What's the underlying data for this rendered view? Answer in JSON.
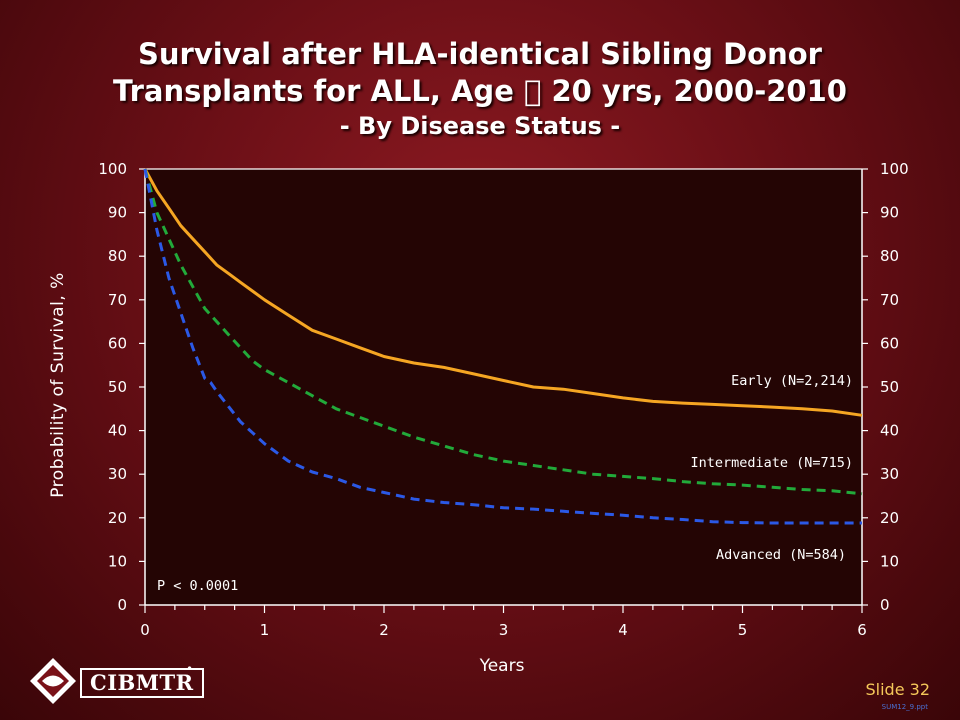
{
  "title": {
    "line1": "Survival after HLA-identical Sibling Donor",
    "line2": "Transplants for ALL, Age \u0000 20 yrs, 2000-2010",
    "line3": "- By Disease Status -"
  },
  "footer": {
    "logo_text": "CIBMTR",
    "slide_label": "Slide 32",
    "slide_code": "SUM12_9.ppt"
  },
  "chart_data": {
    "type": "line",
    "title": "",
    "xlabel": "Years",
    "ylabel": "Probability of Survival, %",
    "xlim": [
      0,
      6
    ],
    "ylim": [
      0,
      100
    ],
    "x_ticks": [
      "0",
      "1",
      "2",
      "3",
      "4",
      "5",
      "6"
    ],
    "y_ticks": [
      "0",
      "10",
      "20",
      "30",
      "40",
      "50",
      "60",
      "70",
      "80",
      "90",
      "100"
    ],
    "dual_y_axis": true,
    "annotation": "P < 0.0001",
    "series": [
      {
        "name": "Early (N=2,214)",
        "color": "#f5a623",
        "style": "solid",
        "x": [
          0,
          0.1,
          0.2,
          0.3,
          0.4,
          0.5,
          0.6,
          0.7,
          0.8,
          0.9,
          1.0,
          1.2,
          1.4,
          1.6,
          1.8,
          2.0,
          2.25,
          2.5,
          2.75,
          3.0,
          3.25,
          3.5,
          3.75,
          4.0,
          4.25,
          4.5,
          4.75,
          5.0,
          5.25,
          5.5,
          5.75,
          6.0
        ],
        "y": [
          100,
          95,
          91,
          87,
          84,
          81,
          78,
          76,
          74,
          72,
          70,
          66.5,
          63,
          61,
          59,
          57,
          55.5,
          54.5,
          53,
          51.5,
          50,
          49.5,
          48.5,
          47.5,
          46.7,
          46.3,
          46,
          45.7,
          45.4,
          45,
          44.5,
          43.5
        ]
      },
      {
        "name": "Intermediate (N=715)",
        "color": "#22aa3a",
        "style": "dashed",
        "x": [
          0,
          0.1,
          0.2,
          0.3,
          0.4,
          0.5,
          0.6,
          0.7,
          0.8,
          0.9,
          1.0,
          1.2,
          1.4,
          1.6,
          1.8,
          2.0,
          2.25,
          2.5,
          2.75,
          3.0,
          3.25,
          3.5,
          3.75,
          4.0,
          4.25,
          4.5,
          4.75,
          5.0,
          5.25,
          5.5,
          5.75,
          6.0
        ],
        "y": [
          100,
          90,
          84,
          78,
          73,
          68,
          65,
          62,
          59,
          56,
          54,
          51,
          48,
          45,
          43,
          41,
          38.5,
          36.5,
          34.5,
          33,
          32,
          31,
          30,
          29.5,
          29,
          28.3,
          27.8,
          27.5,
          27,
          26.5,
          26.2,
          25.5
        ]
      },
      {
        "name": "Advanced (N=584)",
        "color": "#2b59e6",
        "style": "dashed",
        "x": [
          0,
          0.1,
          0.2,
          0.3,
          0.4,
          0.5,
          0.55,
          0.6,
          0.7,
          0.8,
          0.9,
          1.0,
          1.2,
          1.4,
          1.6,
          1.8,
          2.0,
          2.25,
          2.5,
          2.75,
          3.0,
          3.25,
          3.5,
          3.75,
          4.0,
          4.25,
          4.5,
          4.75,
          5.0,
          5.25,
          5.5,
          5.75,
          6.0
        ],
        "y": [
          100,
          86,
          75,
          67,
          59,
          52,
          51,
          49,
          45.5,
          42,
          39.5,
          37,
          33,
          30.5,
          29,
          27,
          25.8,
          24.3,
          23.5,
          23,
          22.3,
          22,
          21.5,
          21,
          20.6,
          20,
          19.6,
          19.1,
          18.9,
          18.8,
          18.8,
          18.8,
          18.8
        ]
      }
    ]
  }
}
